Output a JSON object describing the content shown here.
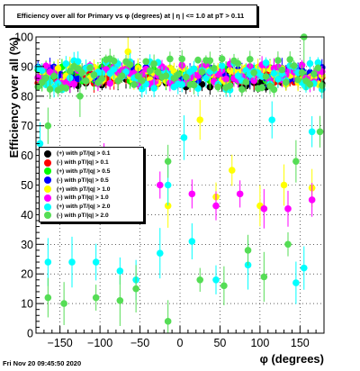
{
  "title": "Efficiency over all for Primary vs φ (degrees) at | η | <= 1.0 at pT > 0.11",
  "timestamp": "Fri Nov 20 09:45:50 2020",
  "chart_data": {
    "type": "scatter",
    "xlabel": "φ (degrees)",
    "ylabel": "Efficiency over all (%)",
    "xlim": [
      -180,
      180
    ],
    "ylim": [
      0,
      100
    ],
    "x_ticks": [
      "−150",
      "−100",
      "−50",
      "0",
      "50",
      "100",
      "150"
    ],
    "x_tick_values": [
      -150,
      -100,
      -50,
      0,
      50,
      100,
      150
    ],
    "y_ticks": [
      "0",
      "10",
      "20",
      "30",
      "40",
      "50",
      "60",
      "70",
      "80",
      "90",
      "100"
    ],
    "y_tick_values": [
      0,
      10,
      20,
      30,
      40,
      50,
      60,
      70,
      80,
      90,
      100
    ],
    "grid": true,
    "legend_position": "left-middle",
    "series": [
      {
        "name": "(+) with pT/|q| > 0.1",
        "color": "#000000",
        "band": [
          83,
          88
        ]
      },
      {
        "name": "(-) with pT/|q| > 0.1",
        "color": "#ff0000",
        "band": [
          84,
          88
        ]
      },
      {
        "name": "(+) with pT/|q| > 0.5",
        "color": "#00ff00",
        "band": [
          85,
          90
        ]
      },
      {
        "name": "(-) with pT/|q| > 0.5",
        "color": "#0000ff",
        "band": [
          85,
          90
        ]
      },
      {
        "name": "(+) with pT/|q| > 1.0",
        "color": "#ffff00",
        "band": [
          84,
          90
        ],
        "outliers": [
          [
            -65,
            95
          ],
          [
            -15,
            43
          ],
          [
            25,
            72
          ],
          [
            45,
            46
          ],
          [
            65,
            55
          ],
          [
            100,
            43
          ],
          [
            130,
            50
          ],
          [
            165,
            49
          ]
        ]
      },
      {
        "name": "(-) with pT/|q| > 1.0",
        "color": "#ff00ff",
        "band": [
          84,
          91
        ],
        "outliers": [
          [
            -95,
            60
          ],
          [
            -25,
            50
          ],
          [
            15,
            47
          ],
          [
            45,
            43
          ],
          [
            75,
            47
          ],
          [
            105,
            42
          ],
          [
            135,
            42
          ],
          [
            165,
            45
          ]
        ]
      },
      {
        "name": "(+) with pT/|q| > 2.0",
        "color": "#00ffff",
        "band": [
          82,
          92
        ],
        "outliers": [
          [
            -175,
            64
          ],
          [
            -165,
            24
          ],
          [
            -135,
            24
          ],
          [
            -105,
            24
          ],
          [
            -75,
            21
          ],
          [
            -55,
            18
          ],
          [
            -25,
            27
          ],
          [
            -15,
            50
          ],
          [
            5,
            66
          ],
          [
            15,
            31
          ],
          [
            45,
            18
          ],
          [
            85,
            23
          ],
          [
            115,
            72
          ],
          [
            145,
            17
          ],
          [
            155,
            22
          ],
          [
            165,
            68
          ]
        ]
      },
      {
        "name": "(-) with pT/|q| > 2.0",
        "color": "#55dd55",
        "band": [
          82,
          93
        ],
        "outliers": [
          [
            -165,
            12
          ],
          [
            -145,
            10
          ],
          [
            -105,
            12
          ],
          [
            -75,
            11
          ],
          [
            -55,
            15
          ],
          [
            -15,
            58
          ],
          [
            -15,
            4
          ],
          [
            25,
            18
          ],
          [
            55,
            16
          ],
          [
            85,
            28
          ],
          [
            105,
            19
          ],
          [
            135,
            30
          ],
          [
            145,
            58
          ],
          [
            155,
            100
          ],
          [
            175,
            68
          ],
          [
            -165,
            70
          ],
          [
            -125,
            80
          ]
        ]
      }
    ]
  }
}
